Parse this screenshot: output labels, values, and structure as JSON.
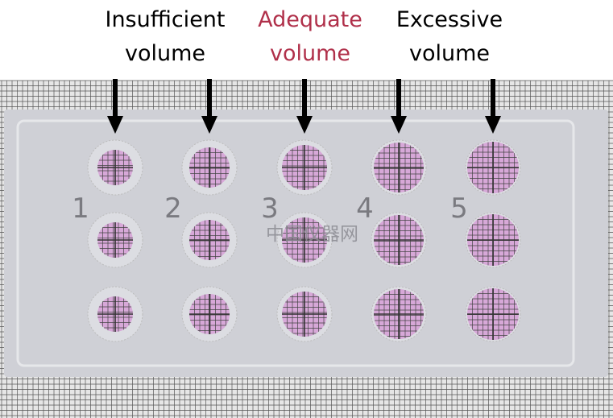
{
  "labels": [
    {
      "line1": "Insufficient",
      "line2": "volume",
      "color": "#1a1a1a"
    },
    {
      "line1": "Adequate",
      "line2": "volume",
      "color": "#b0304a"
    },
    {
      "line1": "Excessive",
      "line2": "volume",
      "color": "#1a1a1a"
    }
  ],
  "column_numbers": [
    "1",
    "2",
    "3",
    "4",
    "5"
  ],
  "watermark": "中国仪器网",
  "colors": {
    "slide": "#cfd0d6",
    "spot": "#d7a8d8",
    "grid": "#444444",
    "number": "#7a7a80"
  }
}
